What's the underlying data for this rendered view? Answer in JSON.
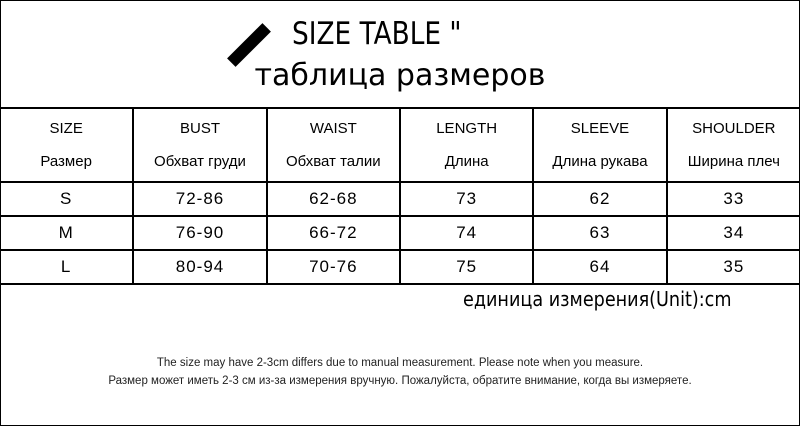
{
  "title": "SIZE TABLE \"",
  "subtitle": "таблица размеров",
  "columns": [
    {
      "en": "SIZE",
      "ru": "Размер"
    },
    {
      "en": "BUST",
      "ru": "Обхват груди"
    },
    {
      "en": "WAIST",
      "ru": "Обхват талии"
    },
    {
      "en": "LENGTH",
      "ru": "Длина"
    },
    {
      "en": "SLEEVE",
      "ru": "Длина рукава"
    },
    {
      "en": "SHOULDER",
      "ru": "Ширина плеч"
    }
  ],
  "rows": [
    [
      "S",
      "72-86",
      "62-68",
      "73",
      "62",
      "33"
    ],
    [
      "M",
      "76-90",
      "66-72",
      "74",
      "63",
      "34"
    ],
    [
      "L",
      "80-94",
      "70-76",
      "75",
      "64",
      "35"
    ]
  ],
  "unit": "единица измерения(Unit):cm",
  "notes": [
    "The size may have 2-3cm differs due to manual measurement. Please note when you measure.",
    "Размер может иметь 2-3 см из-за измерения вручную. Пожалуйста, обратите внимание, когда вы измеряете."
  ]
}
